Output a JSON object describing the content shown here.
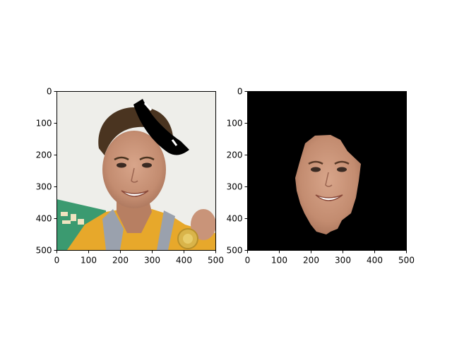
{
  "figure": {
    "panels": [
      {
        "id": "left",
        "content": "original photo with black occlusion stroke",
        "x_ticks": [
          "0",
          "100",
          "200",
          "300",
          "400",
          "500"
        ],
        "y_ticks": [
          "0",
          "100",
          "200",
          "300",
          "400",
          "500"
        ]
      },
      {
        "id": "right",
        "content": "face region mask on black background",
        "x_ticks": [
          "0",
          "100",
          "200",
          "300",
          "400",
          "500"
        ],
        "y_ticks": [
          "0",
          "100",
          "200",
          "300",
          "400",
          "500"
        ]
      }
    ]
  },
  "colors": {
    "background": "#ffffff",
    "axis": "#000000",
    "photo_bg": "#eeeeea",
    "jacket": "#e7a82b",
    "hair": "#4a3420",
    "skin": "#c99479",
    "banner": "#3b9a70",
    "mask_bg": "#000000"
  }
}
